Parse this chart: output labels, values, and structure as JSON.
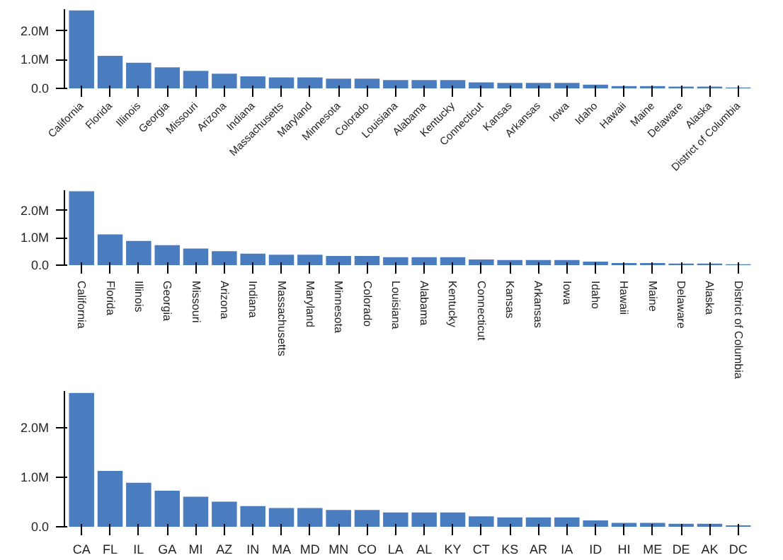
{
  "chart_data": [
    {
      "type": "bar",
      "categories": [
        "California",
        "Florida",
        "Illinois",
        "Georgia",
        "Missouri",
        "Arizona",
        "Indiana",
        "Massachusetts",
        "Maryland",
        "Minnesota",
        "Colorado",
        "Louisiana",
        "Alabama",
        "Kentucky",
        "Connecticut",
        "Kansas",
        "Arkansas",
        "Iowa",
        "Idaho",
        "Hawaii",
        "Maine",
        "Delaware",
        "Alaska",
        "District of Columbia"
      ],
      "values": [
        2.71,
        1.13,
        0.89,
        0.73,
        0.61,
        0.51,
        0.42,
        0.38,
        0.38,
        0.34,
        0.34,
        0.29,
        0.29,
        0.29,
        0.21,
        0.19,
        0.19,
        0.19,
        0.13,
        0.08,
        0.08,
        0.06,
        0.06,
        0.03
      ],
      "color": "#4a7dbf",
      "ylim": [
        0,
        2.75
      ],
      "yticks": [
        {
          "value": 0,
          "label": "0.0"
        },
        {
          "value": 1,
          "label": "1.0M"
        },
        {
          "value": 2,
          "label": "2.0M"
        }
      ],
      "grid": false
    },
    {
      "type": "bar",
      "categories": [
        "California",
        "Florida",
        "Illinois",
        "Georgia",
        "Missouri",
        "Arizona",
        "Indiana",
        "Massachusetts",
        "Maryland",
        "Minnesota",
        "Colorado",
        "Louisiana",
        "Alabama",
        "Kentucky",
        "Connecticut",
        "Kansas",
        "Arkansas",
        "Iowa",
        "Idaho",
        "Hawaii",
        "Maine",
        "Delaware",
        "Alaska",
        "District of Columbia"
      ],
      "values": [
        2.71,
        1.13,
        0.89,
        0.73,
        0.61,
        0.51,
        0.42,
        0.38,
        0.38,
        0.34,
        0.34,
        0.29,
        0.29,
        0.29,
        0.21,
        0.19,
        0.19,
        0.19,
        0.13,
        0.08,
        0.08,
        0.06,
        0.06,
        0.03
      ],
      "color": "#4a7dbf",
      "ylim": [
        0,
        2.75
      ],
      "yticks": [
        {
          "value": 0,
          "label": "0.0"
        },
        {
          "value": 1,
          "label": "1.0M"
        },
        {
          "value": 2,
          "label": "2.0M"
        }
      ],
      "grid": false
    },
    {
      "type": "bar",
      "categories": [
        "CA",
        "FL",
        "IL",
        "GA",
        "MI",
        "AZ",
        "IN",
        "MA",
        "MD",
        "MN",
        "CO",
        "LA",
        "AL",
        "KY",
        "CT",
        "KS",
        "AR",
        "IA",
        "ID",
        "HI",
        "ME",
        "DE",
        "AK",
        "DC"
      ],
      "values": [
        2.71,
        1.13,
        0.89,
        0.73,
        0.61,
        0.51,
        0.42,
        0.38,
        0.38,
        0.34,
        0.34,
        0.29,
        0.29,
        0.29,
        0.21,
        0.19,
        0.19,
        0.19,
        0.13,
        0.08,
        0.08,
        0.06,
        0.06,
        0.03
      ],
      "color": "#4a7dbf",
      "ylim": [
        0,
        2.75
      ],
      "yticks": [
        {
          "value": 0,
          "label": "0.0"
        },
        {
          "value": 1,
          "label": "1.0M"
        },
        {
          "value": 2,
          "label": "2.0M"
        }
      ],
      "grid": false
    }
  ]
}
